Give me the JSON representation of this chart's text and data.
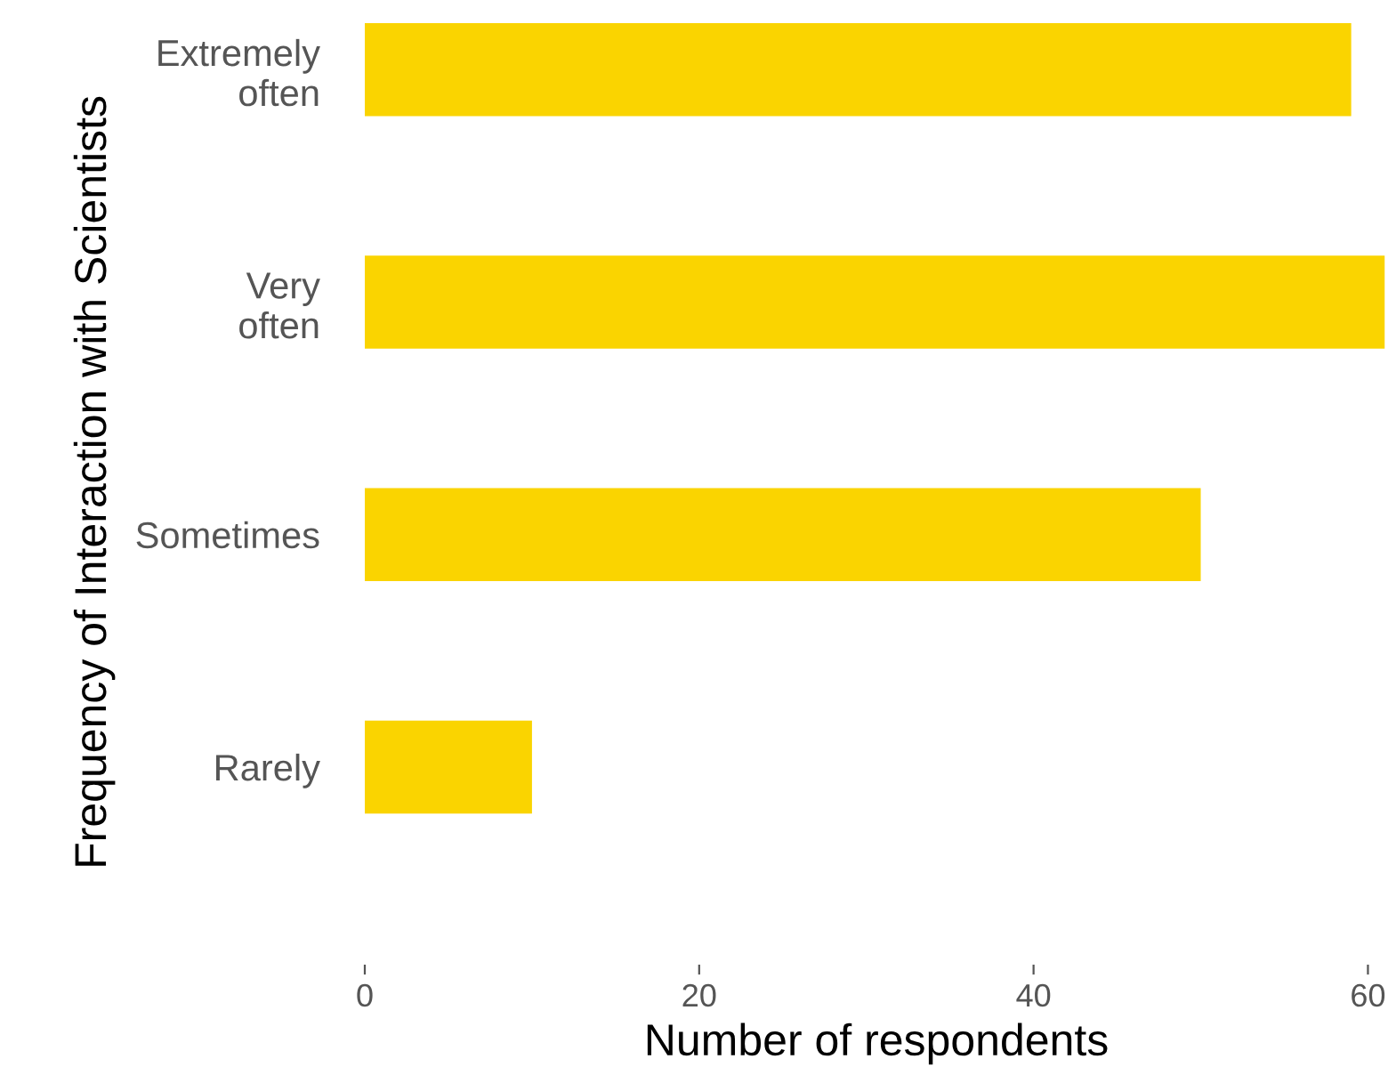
{
  "chart_data": {
    "type": "bar",
    "orientation": "horizontal",
    "categories": [
      "Extremely\noften",
      "Very\noften",
      "Sometimes",
      "Rarely"
    ],
    "values": [
      59,
      61,
      50,
      10
    ],
    "color": "#fad400",
    "xlabel": "Number of respondents",
    "ylabel": "Frequency of Interaction with Scientists",
    "xlim": [
      0,
      61.2
    ],
    "xticks": [
      0,
      20,
      40,
      60
    ],
    "grid": false
  }
}
